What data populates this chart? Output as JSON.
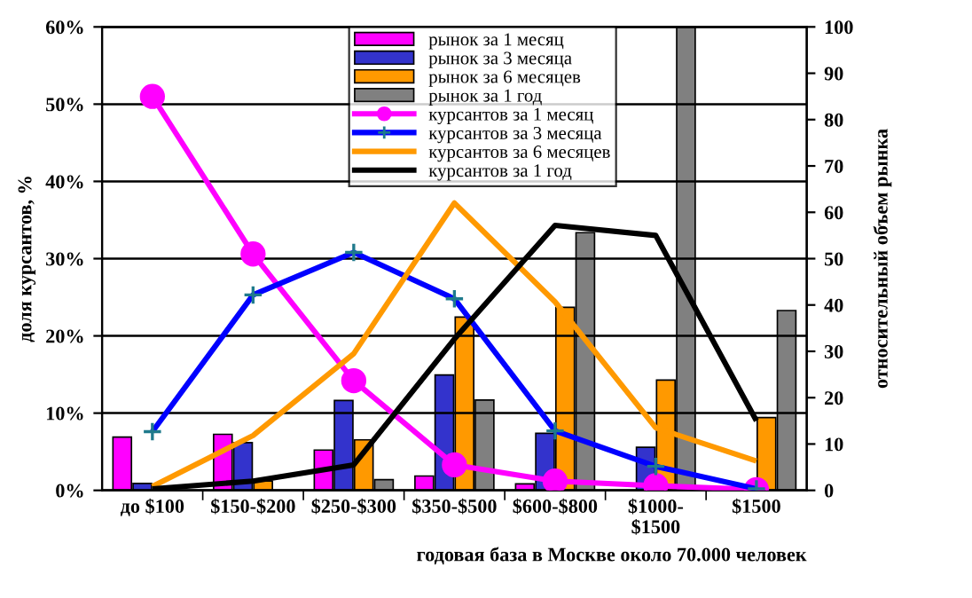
{
  "chart_data": {
    "type": "bar",
    "xlabel": "годовая база в Москве около 70.000 человек",
    "ylabel": "доля курсантов, %",
    "y2label": "относительный объем рынка",
    "categories": [
      "до $100",
      "$150-$200",
      "$250-$300",
      "$350-$500",
      "$600-$800",
      "$1000-\n$1500",
      "$1500"
    ],
    "series": [
      {
        "name": "рынок за 1 месяц",
        "axis": "y2",
        "color": "#ff00ff",
        "values": [
          11.5,
          12.1,
          8.7,
          3.1,
          1.4,
          null,
          null
        ]
      },
      {
        "name": "рынок за 3 месяца",
        "axis": "y2",
        "color": "#3333cc",
        "values": [
          1.5,
          10.3,
          19.4,
          24.9,
          12.3,
          9.3,
          null
        ]
      },
      {
        "name": "рынок за 6 месяцев",
        "axis": "y2",
        "color": "#ff9900",
        "values": [
          null,
          2.0,
          10.9,
          37.4,
          39.5,
          23.8,
          15.7
        ]
      },
      {
        "name": "рынок за 1 год",
        "axis": "y2",
        "color": "#808080",
        "values": [
          null,
          null,
          2.3,
          19.5,
          55.6,
          100,
          38.8
        ]
      },
      {
        "name": "курсантов за 1 месяц",
        "type": "line",
        "color": "#ff00ff",
        "marker": "circle",
        "values": [
          51,
          30.6,
          14.2,
          3.3,
          1.2,
          0.6,
          0.1
        ]
      },
      {
        "name": "курсантов за 3 месяца",
        "type": "line",
        "color": "#0000ff",
        "marker": "cross",
        "values": [
          7.6,
          25.3,
          30.8,
          24.8,
          7.7,
          3.1,
          0.2
        ]
      },
      {
        "name": "курсантов за 6 месяцев",
        "type": "line",
        "color": "#ff9900",
        "values": [
          0.5,
          7.1,
          17.7,
          37.2,
          24.4,
          8.1,
          3.8
        ]
      },
      {
        "name": "курсантов за 1 год",
        "type": "line",
        "color": "#000000",
        "values": [
          0.2,
          1.2,
          3.3,
          19.6,
          34.3,
          33.0,
          9.0
        ]
      }
    ],
    "ylim": [
      0,
      60
    ],
    "yticks": [
      {
        "value": 0,
        "label": "0%"
      },
      {
        "value": 10,
        "label": "10%"
      },
      {
        "value": 20,
        "label": "20%"
      },
      {
        "value": 30,
        "label": "30%"
      },
      {
        "value": 40,
        "label": "40%"
      },
      {
        "value": 50,
        "label": "50%"
      },
      {
        "value": 60,
        "label": "60%"
      }
    ],
    "y2lim": [
      0,
      100
    ],
    "y2ticks": [
      0,
      10,
      20,
      30,
      40,
      50,
      60,
      70,
      80,
      90,
      100
    ],
    "grid": "y",
    "legend": "top"
  }
}
